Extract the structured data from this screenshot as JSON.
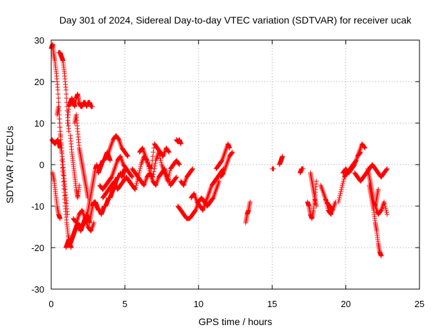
{
  "chart_data": {
    "type": "scatter",
    "title": "Day 301 of 2024, Sidereal Day-to-day VTEC variation (SDTVAR) for receiver ucak",
    "xlabel": "GPS time / hours",
    "ylabel": "SDTVAR / TECUs",
    "xlim": [
      0,
      25
    ],
    "ylim": [
      -30,
      30
    ],
    "xticks": [
      0,
      5,
      10,
      15,
      20,
      25
    ],
    "yticks": [
      -30,
      -20,
      -10,
      0,
      10,
      20,
      30
    ],
    "grid": true,
    "marker": "plus",
    "color": "#ff0000",
    "series": [
      {
        "name": "SDTVAR",
        "segments": [
          {
            "x": [
              0.0,
              0.1,
              0.15,
              0.25,
              0.35,
              0.45,
              0.55,
              0.65,
              0.75,
              0.85,
              0.95,
              1.05,
              1.15,
              1.25,
              1.35
            ],
            "y": [
              28,
              29,
              27,
              25,
              22,
              18,
              12,
              6,
              0,
              -5,
              -10,
              -14,
              -17,
              -19,
              -20
            ]
          },
          {
            "x": [
              0.05,
              0.15,
              0.25,
              0.35,
              0.45,
              0.55,
              0.6
            ],
            "y": [
              6,
              5.5,
              5,
              5.5,
              6,
              5,
              4
            ]
          },
          {
            "x": [
              0.1,
              0.2,
              0.3,
              0.4,
              0.5,
              0.6
            ],
            "y": [
              -2,
              -4,
              -7,
              -10,
              -12,
              -13
            ]
          },
          {
            "x": [
              0.5,
              0.6,
              0.7,
              0.8,
              0.9,
              1.0,
              1.1,
              1.2
            ],
            "y": [
              27,
              27,
              26,
              25,
              22,
              18,
              12,
              8
            ]
          },
          {
            "x": [
              0.4,
              0.5,
              0.6,
              0.7,
              0.8,
              0.9,
              1.0,
              1.1
            ],
            "y": [
              12,
              14,
              8,
              4,
              0,
              -4,
              -8,
              -12
            ]
          },
          {
            "x": [
              1.1,
              1.2,
              1.3,
              1.4,
              1.5,
              1.6,
              1.7,
              1.8,
              1.9,
              2.0,
              2.1,
              2.2,
              2.3,
              2.4,
              2.5,
              2.6,
              2.7,
              2.8
            ],
            "y": [
              10,
              14,
              15,
              16,
              15,
              14,
              16,
              17,
              15,
              14,
              14,
              15,
              15,
              14,
              15,
              15,
              14,
              14
            ]
          },
          {
            "x": [
              1.3,
              1.4,
              1.5,
              1.6,
              1.7,
              1.8,
              1.9
            ],
            "y": [
              7,
              3,
              0,
              -3,
              -6,
              -8,
              -5
            ]
          },
          {
            "x": [
              1.6,
              1.7,
              1.8,
              1.9,
              2.0,
              2.1,
              2.2,
              2.3,
              2.4,
              2.5
            ],
            "y": [
              10,
              12,
              8,
              4,
              2,
              0,
              -2,
              -4,
              -6,
              -8
            ]
          },
          {
            "x": [
              1.0,
              1.1,
              1.2,
              1.3,
              1.4,
              1.5,
              1.6,
              1.7,
              1.8,
              1.9,
              2.0,
              2.1,
              2.2,
              2.3,
              2.4,
              2.5,
              2.6,
              2.7,
              2.8
            ],
            "y": [
              -20,
              -19,
              -18,
              -19,
              -18,
              -17,
              -16,
              -15,
              -14,
              -15,
              -16,
              -15,
              -14,
              -13,
              -12,
              -13,
              -14,
              -12,
              -10
            ]
          },
          {
            "x": [
              1.5,
              1.7,
              1.9,
              2.1,
              2.3,
              2.5,
              2.7,
              2.9
            ],
            "y": [
              -13,
              -14,
              -12,
              -11,
              -13,
              -15,
              -16,
              -14
            ]
          },
          {
            "x": [
              2.4,
              2.5,
              2.6,
              2.7,
              2.8,
              2.9,
              3.0,
              3.1,
              3.2,
              3.3,
              3.4,
              3.5,
              3.6,
              3.7,
              3.8,
              3.9,
              4.0
            ],
            "y": [
              -13,
              -11,
              -9,
              -7,
              -5,
              -3,
              -1,
              0,
              -2,
              -1,
              0,
              1,
              1,
              2,
              3,
              2,
              1
            ]
          },
          {
            "x": [
              2.8,
              2.9,
              3.0,
              3.1,
              3.2,
              3.3,
              3.4,
              3.5,
              3.6,
              3.7,
              3.8,
              3.9,
              4.0,
              4.1,
              4.2,
              4.3,
              4.4,
              4.5,
              4.6,
              4.7,
              4.8,
              4.9,
              5.0
            ],
            "y": [
              -10,
              -9,
              -9,
              -10,
              -11,
              -11,
              -12,
              -11,
              -10,
              -10,
              -9,
              -8,
              -8,
              -7,
              -6,
              -5,
              -4,
              -3,
              -3,
              -2,
              -3,
              -2,
              -1
            ]
          },
          {
            "x": [
              3.3,
              3.5,
              3.7,
              3.9,
              4.1,
              4.3,
              4.5,
              4.7,
              4.9,
              5.1,
              5.3,
              5.5
            ],
            "y": [
              -5,
              -6,
              -5,
              -4,
              -3,
              -1,
              1,
              2,
              0,
              -1,
              -2,
              -3
            ]
          },
          {
            "x": [
              3.5,
              3.7,
              3.9,
              4.1,
              4.3,
              4.5,
              4.7,
              4.9,
              5.1,
              5.3
            ],
            "y": [
              -8,
              -7,
              -6,
              -5,
              -4,
              -6,
              -5,
              -4,
              -3,
              -4
            ]
          },
          {
            "x": [
              3.8,
              4.0,
              4.2,
              4.4,
              4.6,
              4.8,
              5.0,
              5.2
            ],
            "y": [
              2,
              4,
              6,
              7,
              6,
              4,
              3,
              2
            ]
          },
          {
            "x": [
              5.3,
              5.5,
              5.7,
              5.9,
              6.1,
              6.3,
              6.5,
              6.7,
              6.9,
              7.1,
              7.3,
              7.5,
              7.7,
              7.9,
              8.1,
              8.3,
              8.5,
              8.7
            ],
            "y": [
              -4,
              -5,
              -6,
              -3,
              0,
              2,
              1,
              -2,
              -3,
              1,
              3,
              0,
              -2,
              -4,
              -1,
              0,
              1,
              0
            ]
          },
          {
            "x": [
              5.5,
              5.7,
              5.9,
              6.1,
              6.3,
              6.5,
              6.7,
              6.9,
              7.1,
              7.3,
              7.5,
              7.7,
              7.9,
              8.1,
              8.3,
              8.5
            ],
            "y": [
              -1,
              -2,
              -3,
              -4,
              -5,
              -3,
              -2,
              -4,
              -5,
              -3,
              -2,
              -1,
              -3,
              -5,
              -4,
              -3
            ]
          },
          {
            "x": [
              6.0,
              6.2,
              6.4,
              6.6,
              6.8,
              7.0,
              7.2,
              7.4,
              7.6,
              7.8,
              8.0
            ],
            "y": [
              3,
              4,
              2,
              0,
              -1,
              5,
              4,
              3,
              2,
              4,
              3
            ]
          },
          {
            "x": [
              8.5,
              8.6,
              8.7,
              8.8
            ],
            "y": [
              6,
              5.5,
              6,
              5
            ]
          },
          {
            "x": [
              8.6,
              8.8,
              9.0,
              9.2,
              9.4,
              9.6,
              9.8,
              10.0,
              10.2,
              10.4,
              10.6,
              10.8,
              11.0,
              11.2,
              11.4
            ],
            "y": [
              -10,
              -11,
              -12,
              -13,
              -13,
              -12,
              -11,
              -9,
              -8,
              -9,
              -10,
              -9,
              -8,
              -6,
              -4
            ]
          },
          {
            "x": [
              9.5,
              9.7,
              9.9,
              10.1,
              10.3,
              10.5,
              10.7,
              10.9,
              11.1,
              11.3,
              11.5,
              11.7
            ],
            "y": [
              -8,
              -7,
              -9,
              -10,
              -11,
              -9,
              -7,
              -5,
              -4,
              -3,
              -2,
              -1
            ]
          },
          {
            "x": [
              8.8,
              9.0,
              9.2,
              9.4,
              9.6
            ],
            "y": [
              -4,
              -5,
              -3,
              -2,
              -1
            ]
          },
          {
            "x": [
              11.2,
              11.4,
              11.6,
              11.8,
              12.0,
              12.1
            ],
            "y": [
              -1,
              0,
              1,
              3,
              5,
              4
            ]
          },
          {
            "x": [
              11.5,
              11.7,
              11.9,
              12.1,
              12.3
            ],
            "y": [
              -3,
              -2,
              0,
              2,
              3
            ]
          },
          {
            "x": [
              13.2,
              13.3,
              13.4,
              13.5
            ],
            "y": [
              -14,
              -12,
              -11,
              -9
            ]
          },
          {
            "x": [
              15.0,
              15.1
            ],
            "y": [
              -1,
              -1
            ]
          },
          {
            "x": [
              15.5,
              15.6,
              15.7
            ],
            "y": [
              0,
              1,
              2
            ]
          },
          {
            "x": [
              16.9,
              17.0,
              17.1
            ],
            "y": [
              -2,
              -1,
              -1
            ]
          },
          {
            "x": [
              17.4,
              17.5,
              17.6,
              17.7,
              17.8,
              17.9,
              18.0
            ],
            "y": [
              -9,
              -10,
              -12,
              -13,
              -11,
              -8,
              -4
            ]
          },
          {
            "x": [
              17.6,
              17.7,
              17.8,
              17.9,
              18.0
            ],
            "y": [
              -2,
              -4,
              -6,
              -8,
              -10
            ]
          },
          {
            "x": [
              18.3,
              18.5,
              18.7,
              18.9,
              19.1,
              19.3
            ],
            "y": [
              -5,
              -7,
              -9,
              -10,
              -11,
              -9
            ]
          },
          {
            "x": [
              18.6,
              18.8,
              19.0,
              19.2
            ],
            "y": [
              -8,
              -11,
              -12,
              -10
            ]
          },
          {
            "x": [
              19.5,
              19.7,
              19.9,
              20.1,
              20.3,
              20.5,
              20.7,
              20.9,
              21.1,
              21.3
            ],
            "y": [
              -9,
              -6,
              -3,
              -2,
              -1,
              0,
              1,
              3,
              5,
              4
            ]
          },
          {
            "x": [
              19.8,
              20.0,
              20.2,
              20.4,
              20.6,
              20.8,
              21.0
            ],
            "y": [
              -2,
              -1,
              -2,
              -1,
              0,
              2,
              3
            ]
          },
          {
            "x": [
              20.6,
              20.8,
              21.0,
              21.2,
              21.4,
              21.6,
              21.8,
              22.0,
              22.2,
              22.4,
              22.6,
              22.8
            ],
            "y": [
              -2,
              -3,
              -4,
              -3,
              -2,
              -1,
              0,
              -1,
              -2,
              -3,
              -2,
              -1
            ]
          },
          {
            "x": [
              21.5,
              21.6,
              21.7,
              21.8,
              21.9,
              22.0,
              22.1,
              22.2
            ],
            "y": [
              -1,
              -3,
              -5,
              -7,
              -9,
              -10,
              -8,
              -6
            ]
          },
          {
            "x": [
              21.6,
              21.7,
              21.8,
              21.9,
              22.0,
              22.1,
              22.2,
              22.3,
              22.4
            ],
            "y": [
              -5,
              -7,
              -9,
              -11,
              -14,
              -16,
              -19,
              -21,
              -22
            ]
          },
          {
            "x": [
              21.8,
              22.0,
              22.2,
              22.4,
              22.6,
              22.8
            ],
            "y": [
              -8,
              -10,
              -12,
              -11,
              -9,
              -12
            ]
          }
        ]
      }
    ]
  }
}
